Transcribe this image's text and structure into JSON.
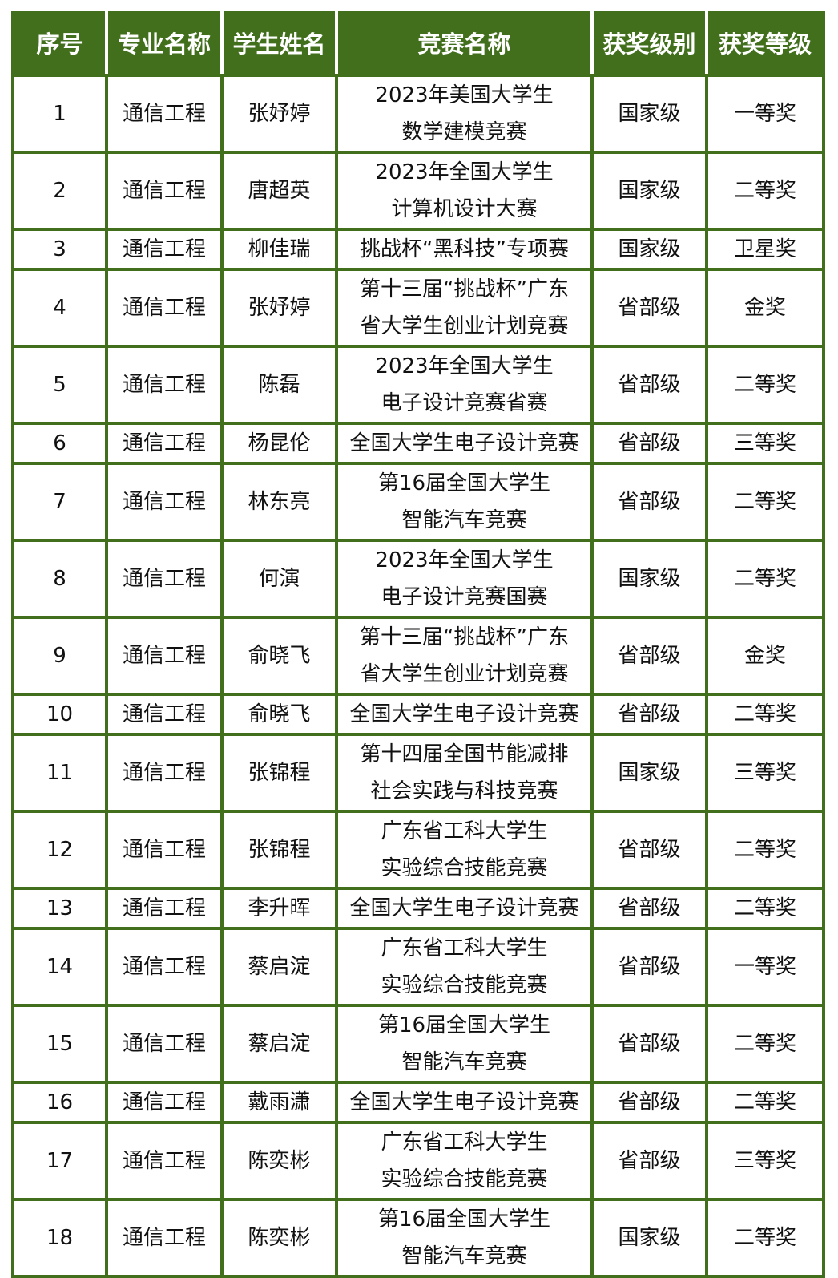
{
  "colors": {
    "header_bg": "#416f1c",
    "grid": "#416f1c",
    "header_text": "#ffffff"
  },
  "headers": [
    "序号",
    "专业名称",
    "学生姓名",
    "竞赛名称",
    "获奖级别",
    "获奖等级"
  ],
  "rows": [
    {
      "no": "1",
      "major": "通信工程",
      "name": "张妤婷",
      "competition": "2023年美国大学生\n数学建模竞赛",
      "level": "国家级",
      "award": "一等奖"
    },
    {
      "no": "2",
      "major": "通信工程",
      "name": "唐超英",
      "competition": "2023年全国大学生\n计算机设计大赛",
      "level": "国家级",
      "award": "二等奖"
    },
    {
      "no": "3",
      "major": "通信工程",
      "name": "柳佳瑞",
      "competition": "挑战杯“黑科技”专项赛",
      "level": "国家级",
      "award": "卫星奖"
    },
    {
      "no": "4",
      "major": "通信工程",
      "name": "张妤婷",
      "competition": "第十三届“挑战杯”广东\n省大学生创业计划竞赛",
      "level": "省部级",
      "award": "金奖"
    },
    {
      "no": "5",
      "major": "通信工程",
      "name": "陈磊",
      "competition": "2023年全国大学生\n电子设计竞赛省赛",
      "level": "省部级",
      "award": "二等奖"
    },
    {
      "no": "6",
      "major": "通信工程",
      "name": "杨昆伦",
      "competition": "全国大学生电子设计竞赛",
      "level": "省部级",
      "award": "三等奖"
    },
    {
      "no": "7",
      "major": "通信工程",
      "name": "林东亮",
      "competition": "第16届全国大学生\n智能汽车竞赛",
      "level": "省部级",
      "award": "二等奖"
    },
    {
      "no": "8",
      "major": "通信工程",
      "name": "何演",
      "competition": "2023年全国大学生\n电子设计竞赛国赛",
      "level": "国家级",
      "award": "二等奖"
    },
    {
      "no": "9",
      "major": "通信工程",
      "name": "俞晓飞",
      "competition": "第十三届“挑战杯”广东\n省大学生创业计划竞赛",
      "level": "省部级",
      "award": "金奖"
    },
    {
      "no": "10",
      "major": "通信工程",
      "name": "俞晓飞",
      "competition": "全国大学生电子设计竞赛",
      "level": "省部级",
      "award": "二等奖"
    },
    {
      "no": "11",
      "major": "通信工程",
      "name": "张锦程",
      "competition": "第十四届全国节能减排\n社会实践与科技竞赛",
      "level": "国家级",
      "award": "三等奖"
    },
    {
      "no": "12",
      "major": "通信工程",
      "name": "张锦程",
      "competition": "广东省工科大学生\n实验综合技能竞赛",
      "level": "省部级",
      "award": "二等奖"
    },
    {
      "no": "13",
      "major": "通信工程",
      "name": "李升晖",
      "competition": "全国大学生电子设计竞赛",
      "level": "省部级",
      "award": "二等奖"
    },
    {
      "no": "14",
      "major": "通信工程",
      "name": "蔡启淀",
      "competition": "广东省工科大学生\n实验综合技能竞赛",
      "level": "省部级",
      "award": "一等奖"
    },
    {
      "no": "15",
      "major": "通信工程",
      "name": "蔡启淀",
      "competition": "第16届全国大学生\n智能汽车竞赛",
      "level": "省部级",
      "award": "二等奖"
    },
    {
      "no": "16",
      "major": "通信工程",
      "name": "戴雨潇",
      "competition": "全国大学生电子设计竞赛",
      "level": "省部级",
      "award": "二等奖"
    },
    {
      "no": "17",
      "major": "通信工程",
      "name": "陈奕彬",
      "competition": "广东省工科大学生\n实验综合技能竞赛",
      "level": "省部级",
      "award": "三等奖"
    },
    {
      "no": "18",
      "major": "通信工程",
      "name": "陈奕彬",
      "competition": "第16届全国大学生\n智能汽车竞赛",
      "level": "国家级",
      "award": "二等奖"
    }
  ]
}
